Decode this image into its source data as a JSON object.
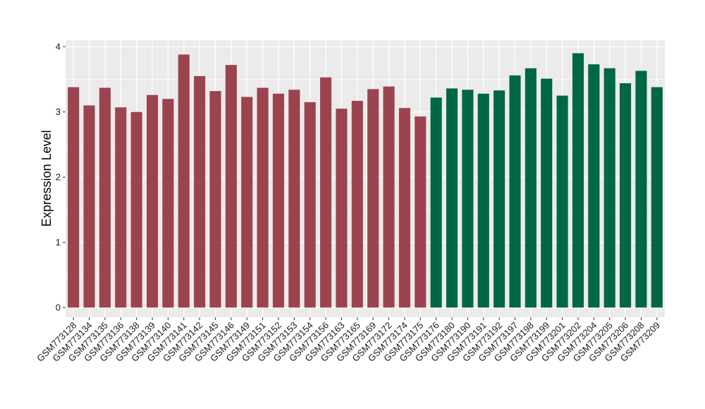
{
  "chart_data": {
    "type": "bar",
    "title": "",
    "xlabel": "",
    "ylabel": "Expression Level",
    "ylim": [
      -0.15,
      4.1
    ],
    "yticks": [
      0,
      1,
      2,
      3,
      4
    ],
    "grid": true,
    "legend": "none",
    "colors": {
      "group1": "#9B4450",
      "group2": "#006743",
      "panel": "#EBEBEB",
      "gridline": "#FFFFFF"
    },
    "categories": [
      "GSM773128",
      "GSM773134",
      "GSM773135",
      "GSM773136",
      "GSM773138",
      "GSM773139",
      "GSM773140",
      "GSM773141",
      "GSM773142",
      "GSM773145",
      "GSM773146",
      "GSM773149",
      "GSM773151",
      "GSM773152",
      "GSM773153",
      "GSM773154",
      "GSM773156",
      "GSM773163",
      "GSM773165",
      "GSM773169",
      "GSM773172",
      "GSM773174",
      "GSM773175",
      "GSM773176",
      "GSM773180",
      "GSM773190",
      "GSM773191",
      "GSM773192",
      "GSM773197",
      "GSM773198",
      "GSM773199",
      "GSM773201",
      "GSM773202",
      "GSM773204",
      "GSM773205",
      "GSM773206",
      "GSM773208",
      "GSM773209"
    ],
    "values": [
      3.38,
      3.1,
      3.37,
      3.07,
      3.0,
      3.26,
      3.2,
      3.88,
      3.55,
      3.32,
      3.72,
      3.23,
      3.37,
      3.28,
      3.34,
      3.15,
      3.53,
      3.05,
      3.17,
      3.35,
      3.39,
      3.06,
      2.93,
      3.22,
      3.36,
      3.34,
      3.28,
      3.33,
      3.56,
      3.67,
      3.51,
      3.25,
      3.9,
      3.73,
      3.67,
      3.44,
      3.63,
      3.38
    ],
    "groups": [
      1,
      1,
      1,
      1,
      1,
      1,
      1,
      1,
      1,
      1,
      1,
      1,
      1,
      1,
      1,
      1,
      1,
      1,
      1,
      1,
      1,
      1,
      1,
      2,
      2,
      2,
      2,
      2,
      2,
      2,
      2,
      2,
      2,
      2,
      2,
      2,
      2,
      2
    ]
  }
}
